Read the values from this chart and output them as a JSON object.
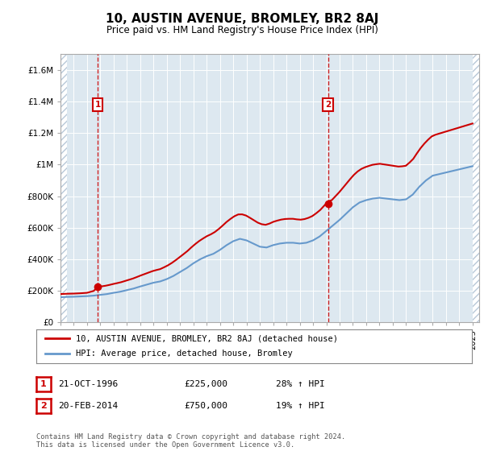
{
  "title": "10, AUSTIN AVENUE, BROMLEY, BR2 8AJ",
  "subtitle": "Price paid vs. HM Land Registry's House Price Index (HPI)",
  "legend_line1": "10, AUSTIN AVENUE, BROMLEY, BR2 8AJ (detached house)",
  "legend_line2": "HPI: Average price, detached house, Bromley",
  "transaction1_label": "1",
  "transaction1_date": "21-OCT-1996",
  "transaction1_price": "£225,000",
  "transaction1_hpi": "28% ↑ HPI",
  "transaction1_year": 1996.8,
  "transaction1_value": 225000,
  "transaction2_label": "2",
  "transaction2_date": "20-FEB-2014",
  "transaction2_price": "£750,000",
  "transaction2_hpi": "19% ↑ HPI",
  "transaction2_year": 2014.13,
  "transaction2_value": 750000,
  "footer": "Contains HM Land Registry data © Crown copyright and database right 2024.\nThis data is licensed under the Open Government Licence v3.0.",
  "red_color": "#cc0000",
  "blue_color": "#6699cc",
  "bg_color": "#dde8f0",
  "hatch_color": "#b8c8d8",
  "ylim": [
    0,
    1700000
  ],
  "xlim": [
    1994,
    2025.5
  ],
  "yticks": [
    0,
    200000,
    400000,
    600000,
    800000,
    1000000,
    1200000,
    1400000,
    1600000
  ],
  "ytick_labels": [
    "£0",
    "£200K",
    "£400K",
    "£600K",
    "£800K",
    "£1M",
    "£1.2M",
    "£1.4M",
    "£1.6M"
  ],
  "xticks": [
    1994,
    1995,
    1996,
    1997,
    1998,
    1999,
    2000,
    2001,
    2002,
    2003,
    2004,
    2005,
    2006,
    2007,
    2008,
    2009,
    2010,
    2011,
    2012,
    2013,
    2014,
    2015,
    2016,
    2017,
    2018,
    2019,
    2020,
    2021,
    2022,
    2023,
    2024,
    2025
  ]
}
